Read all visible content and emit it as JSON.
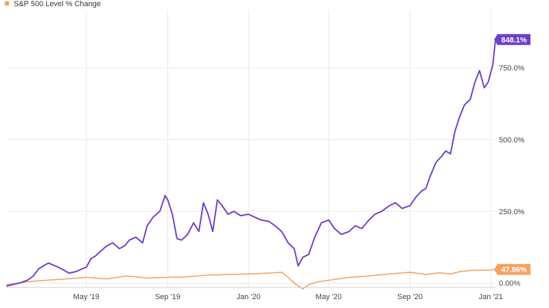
{
  "chart_data": {
    "type": "line",
    "title": "",
    "xlabel": "",
    "ylabel": "",
    "x_range": [
      "2019-01-01",
      "2021-01-08"
    ],
    "ylim": [
      -15,
      950
    ],
    "y_ticks": [
      {
        "value": 0,
        "label": "0.00%"
      },
      {
        "value": 250,
        "label": "250.0%"
      },
      {
        "value": 500,
        "label": "500.0%"
      },
      {
        "value": 750,
        "label": "750.0%"
      }
    ],
    "x_ticks": [
      {
        "date": "2019-05-01",
        "label": "May '19"
      },
      {
        "date": "2019-09-01",
        "label": "Sep '19"
      },
      {
        "date": "2020-01-01",
        "label": "Jan '20"
      },
      {
        "date": "2020-05-01",
        "label": "May '20"
      },
      {
        "date": "2020-09-01",
        "label": "Sep '20"
      },
      {
        "date": "2021-01-01",
        "label": "Jan '21"
      }
    ],
    "grid": true,
    "legend_position": "top-left",
    "series": [
      {
        "name": "",
        "color": "#6e40c9",
        "end_label": "848.1%",
        "points": [
          [
            "2019-01-01",
            -10
          ],
          [
            "2019-01-10",
            -5
          ],
          [
            "2019-01-20",
            0
          ],
          [
            "2019-02-01",
            10
          ],
          [
            "2019-02-10",
            25
          ],
          [
            "2019-02-18",
            50
          ],
          [
            "2019-02-25",
            60
          ],
          [
            "2019-03-05",
            70
          ],
          [
            "2019-03-10",
            65
          ],
          [
            "2019-03-20",
            55
          ],
          [
            "2019-03-28",
            45
          ],
          [
            "2019-04-05",
            35
          ],
          [
            "2019-04-15",
            40
          ],
          [
            "2019-04-25",
            50
          ],
          [
            "2019-05-01",
            55
          ],
          [
            "2019-05-08",
            85
          ],
          [
            "2019-05-15",
            95
          ],
          [
            "2019-05-22",
            110
          ],
          [
            "2019-06-01",
            130
          ],
          [
            "2019-06-10",
            140
          ],
          [
            "2019-06-20",
            120
          ],
          [
            "2019-06-28",
            130
          ],
          [
            "2019-07-05",
            150
          ],
          [
            "2019-07-15",
            160
          ],
          [
            "2019-07-25",
            140
          ],
          [
            "2019-08-01",
            200
          ],
          [
            "2019-08-10",
            230
          ],
          [
            "2019-08-20",
            250
          ],
          [
            "2019-08-28",
            305
          ],
          [
            "2019-09-01",
            290
          ],
          [
            "2019-09-08",
            240
          ],
          [
            "2019-09-15",
            155
          ],
          [
            "2019-09-22",
            150
          ],
          [
            "2019-10-01",
            170
          ],
          [
            "2019-10-10",
            210
          ],
          [
            "2019-10-18",
            180
          ],
          [
            "2019-10-25",
            280
          ],
          [
            "2019-11-01",
            240
          ],
          [
            "2019-11-08",
            180
          ],
          [
            "2019-11-15",
            290
          ],
          [
            "2019-11-22",
            270
          ],
          [
            "2019-12-01",
            240
          ],
          [
            "2019-12-10",
            250
          ],
          [
            "2019-12-20",
            235
          ],
          [
            "2020-01-01",
            240
          ],
          [
            "2020-01-10",
            230
          ],
          [
            "2020-01-20",
            220
          ],
          [
            "2020-02-01",
            215
          ],
          [
            "2020-02-10",
            200
          ],
          [
            "2020-02-20",
            180
          ],
          [
            "2020-03-01",
            140
          ],
          [
            "2020-03-10",
            120
          ],
          [
            "2020-03-16",
            60
          ],
          [
            "2020-03-23",
            90
          ],
          [
            "2020-04-01",
            100
          ],
          [
            "2020-04-10",
            160
          ],
          [
            "2020-04-20",
            210
          ],
          [
            "2020-05-01",
            220
          ],
          [
            "2020-05-10",
            190
          ],
          [
            "2020-05-20",
            170
          ],
          [
            "2020-06-01",
            180
          ],
          [
            "2020-06-10",
            200
          ],
          [
            "2020-06-20",
            190
          ],
          [
            "2020-07-01",
            220
          ],
          [
            "2020-07-10",
            240
          ],
          [
            "2020-07-20",
            250
          ],
          [
            "2020-08-01",
            270
          ],
          [
            "2020-08-10",
            280
          ],
          [
            "2020-08-20",
            260
          ],
          [
            "2020-09-01",
            270
          ],
          [
            "2020-09-10",
            300
          ],
          [
            "2020-09-18",
            320
          ],
          [
            "2020-09-25",
            330
          ],
          [
            "2020-10-01",
            370
          ],
          [
            "2020-10-10",
            420
          ],
          [
            "2020-10-18",
            440
          ],
          [
            "2020-10-25",
            460
          ],
          [
            "2020-11-01",
            450
          ],
          [
            "2020-11-08",
            530
          ],
          [
            "2020-11-15",
            580
          ],
          [
            "2020-11-22",
            620
          ],
          [
            "2020-12-01",
            640
          ],
          [
            "2020-12-08",
            700
          ],
          [
            "2020-12-15",
            740
          ],
          [
            "2020-12-22",
            680
          ],
          [
            "2020-12-28",
            700
          ],
          [
            "2021-01-04",
            760
          ],
          [
            "2021-01-08",
            848.1
          ]
        ]
      },
      {
        "name": "S&P 500 Level % Change",
        "color": "#f4a261",
        "end_label": "47.96%",
        "points": [
          [
            "2019-01-01",
            -5
          ],
          [
            "2019-02-01",
            5
          ],
          [
            "2019-03-01",
            10
          ],
          [
            "2019-04-01",
            15
          ],
          [
            "2019-05-01",
            20
          ],
          [
            "2019-06-01",
            15
          ],
          [
            "2019-07-01",
            25
          ],
          [
            "2019-08-01",
            18
          ],
          [
            "2019-09-01",
            20
          ],
          [
            "2019-10-01",
            22
          ],
          [
            "2019-11-01",
            28
          ],
          [
            "2019-12-01",
            30
          ],
          [
            "2020-01-01",
            32
          ],
          [
            "2020-02-01",
            35
          ],
          [
            "2020-02-20",
            38
          ],
          [
            "2020-03-01",
            20
          ],
          [
            "2020-03-10",
            0
          ],
          [
            "2020-03-23",
            -20
          ],
          [
            "2020-04-01",
            -5
          ],
          [
            "2020-04-15",
            5
          ],
          [
            "2020-05-01",
            10
          ],
          [
            "2020-06-01",
            20
          ],
          [
            "2020-07-01",
            25
          ],
          [
            "2020-08-01",
            32
          ],
          [
            "2020-09-01",
            38
          ],
          [
            "2020-09-25",
            30
          ],
          [
            "2020-10-15",
            36
          ],
          [
            "2020-11-01",
            32
          ],
          [
            "2020-11-15",
            40
          ],
          [
            "2020-12-01",
            44
          ],
          [
            "2021-01-01",
            46
          ],
          [
            "2021-01-08",
            47.96
          ]
        ]
      }
    ]
  }
}
